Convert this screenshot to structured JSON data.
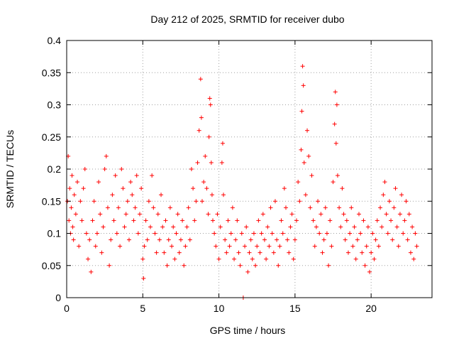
{
  "chart_data": {
    "type": "scatter",
    "title": "Day 212 of 2025, SRMTID for receiver dubo",
    "xlabel": "GPS time / hours",
    "ylabel": "SRMTID / TECUs",
    "xlim": [
      0,
      24
    ],
    "ylim": [
      0,
      0.4
    ],
    "xticks": [
      0,
      5,
      10,
      15,
      20
    ],
    "xtick_labels": [
      "0",
      "5",
      "10",
      "15",
      "20"
    ],
    "yticks": [
      0,
      0.05,
      0.1,
      0.15,
      0.2,
      0.25,
      0.3,
      0.35,
      0.4
    ],
    "ytick_labels": [
      "0",
      "0.05",
      "0.1",
      "0.15",
      "0.2",
      "0.25",
      "0.3",
      "0.35",
      "0.4"
    ],
    "grid": true,
    "marker": "+",
    "color": "#ff0000",
    "series": [
      {
        "name": "SRMTID",
        "points": [
          [
            0.05,
            0.15
          ],
          [
            0.1,
            0.22
          ],
          [
            0.15,
            0.12
          ],
          [
            0.2,
            0.17
          ],
          [
            0.25,
            0.1
          ],
          [
            0.3,
            0.14
          ],
          [
            0.35,
            0.19
          ],
          [
            0.4,
            0.11
          ],
          [
            0.45,
            0.09
          ],
          [
            0.5,
            0.16
          ],
          [
            0.6,
            0.13
          ],
          [
            0.7,
            0.18
          ],
          [
            0.8,
            0.08
          ],
          [
            0.9,
            0.15
          ],
          [
            1.0,
            0.12
          ],
          [
            1.1,
            0.17
          ],
          [
            1.2,
            0.2
          ],
          [
            1.3,
            0.1
          ],
          [
            1.4,
            0.06
          ],
          [
            1.5,
            0.09
          ],
          [
            1.6,
            0.04
          ],
          [
            1.7,
            0.12
          ],
          [
            1.8,
            0.15
          ],
          [
            1.9,
            0.08
          ],
          [
            2.0,
            0.1
          ],
          [
            2.1,
            0.18
          ],
          [
            2.2,
            0.13
          ],
          [
            2.3,
            0.07
          ],
          [
            2.4,
            0.11
          ],
          [
            2.5,
            0.2
          ],
          [
            2.6,
            0.22
          ],
          [
            2.7,
            0.14
          ],
          [
            2.8,
            0.05
          ],
          [
            2.9,
            0.09
          ],
          [
            3.0,
            0.16
          ],
          [
            3.1,
            0.12
          ],
          [
            3.2,
            0.19
          ],
          [
            3.3,
            0.1
          ],
          [
            3.4,
            0.14
          ],
          [
            3.5,
            0.08
          ],
          [
            3.6,
            0.2
          ],
          [
            3.7,
            0.17
          ],
          [
            3.8,
            0.11
          ],
          [
            3.9,
            0.13
          ],
          [
            4.0,
            0.15
          ],
          [
            4.1,
            0.09
          ],
          [
            4.2,
            0.18
          ],
          [
            4.3,
            0.16
          ],
          [
            4.4,
            0.12
          ],
          [
            4.5,
            0.14
          ],
          [
            4.6,
            0.19
          ],
          [
            4.7,
            0.1
          ],
          [
            4.8,
            0.13
          ],
          [
            4.9,
            0.17
          ],
          [
            5.0,
            0.06
          ],
          [
            5.05,
            0.03
          ],
          [
            5.1,
            0.08
          ],
          [
            5.2,
            0.12
          ],
          [
            5.3,
            0.09
          ],
          [
            5.4,
            0.15
          ],
          [
            5.5,
            0.11
          ],
          [
            5.6,
            0.19
          ],
          [
            5.7,
            0.14
          ],
          [
            5.8,
            0.1
          ],
          [
            5.9,
            0.07
          ],
          [
            6.0,
            0.13
          ],
          [
            6.1,
            0.09
          ],
          [
            6.2,
            0.16
          ],
          [
            6.3,
            0.11
          ],
          [
            6.4,
            0.07
          ],
          [
            6.5,
            0.12
          ],
          [
            6.6,
            0.05
          ],
          [
            6.7,
            0.09
          ],
          [
            6.8,
            0.14
          ],
          [
            6.9,
            0.08
          ],
          [
            7.0,
            0.11
          ],
          [
            7.1,
            0.06
          ],
          [
            7.2,
            0.1
          ],
          [
            7.3,
            0.13
          ],
          [
            7.4,
            0.07
          ],
          [
            7.5,
            0.09
          ],
          [
            7.6,
            0.12
          ],
          [
            7.7,
            0.05
          ],
          [
            7.8,
            0.08
          ],
          [
            7.9,
            0.11
          ],
          [
            8.0,
            0.14
          ],
          [
            8.1,
            0.09
          ],
          [
            8.2,
            0.2
          ],
          [
            8.3,
            0.17
          ],
          [
            8.4,
            0.12
          ],
          [
            8.5,
            0.15
          ],
          [
            8.6,
            0.21
          ],
          [
            8.7,
            0.26
          ],
          [
            8.8,
            0.34
          ],
          [
            8.85,
            0.28
          ],
          [
            8.9,
            0.15
          ],
          [
            9.0,
            0.18
          ],
          [
            9.1,
            0.22
          ],
          [
            9.2,
            0.17
          ],
          [
            9.3,
            0.13
          ],
          [
            9.35,
            0.25
          ],
          [
            9.4,
            0.31
          ],
          [
            9.45,
            0.3
          ],
          [
            9.5,
            0.21
          ],
          [
            9.55,
            0.16
          ],
          [
            9.6,
            0.12
          ],
          [
            9.7,
            0.1
          ],
          [
            9.8,
            0.08
          ],
          [
            9.9,
            0.13
          ],
          [
            10.0,
            0.06
          ],
          [
            10.1,
            0.11
          ],
          [
            10.2,
            0.21
          ],
          [
            10.25,
            0.24
          ],
          [
            10.3,
            0.16
          ],
          [
            10.4,
            0.09
          ],
          [
            10.5,
            0.07
          ],
          [
            10.6,
            0.12
          ],
          [
            10.7,
            0.08
          ],
          [
            10.8,
            0.1
          ],
          [
            10.9,
            0.14
          ],
          [
            11.0,
            0.06
          ],
          [
            11.1,
            0.09
          ],
          [
            11.2,
            0.12
          ],
          [
            11.3,
            0.07
          ],
          [
            11.4,
            0.05
          ],
          [
            11.5,
            0.1
          ],
          [
            11.6,
            0.0
          ],
          [
            11.7,
            0.08
          ],
          [
            11.8,
            0.11
          ],
          [
            11.9,
            0.04
          ],
          [
            12.0,
            0.07
          ],
          [
            12.1,
            0.09
          ],
          [
            12.2,
            0.06
          ],
          [
            12.3,
            0.1
          ],
          [
            12.4,
            0.05
          ],
          [
            12.5,
            0.08
          ],
          [
            12.6,
            0.12
          ],
          [
            12.7,
            0.07
          ],
          [
            12.8,
            0.1
          ],
          [
            12.9,
            0.13
          ],
          [
            13.0,
            0.09
          ],
          [
            13.1,
            0.06
          ],
          [
            13.2,
            0.11
          ],
          [
            13.3,
            0.08
          ],
          [
            13.4,
            0.14
          ],
          [
            13.5,
            0.1
          ],
          [
            13.6,
            0.07
          ],
          [
            13.7,
            0.15
          ],
          [
            13.8,
            0.09
          ],
          [
            13.9,
            0.05
          ],
          [
            14.0,
            0.08
          ],
          [
            14.1,
            0.12
          ],
          [
            14.2,
            0.1
          ],
          [
            14.3,
            0.17
          ],
          [
            14.4,
            0.14
          ],
          [
            14.5,
            0.09
          ],
          [
            14.6,
            0.07
          ],
          [
            14.7,
            0.11
          ],
          [
            14.8,
            0.13
          ],
          [
            14.9,
            0.06
          ],
          [
            15.0,
            0.09
          ],
          [
            15.1,
            0.12
          ],
          [
            15.2,
            0.18
          ],
          [
            15.3,
            0.15
          ],
          [
            15.4,
            0.23
          ],
          [
            15.45,
            0.29
          ],
          [
            15.5,
            0.36
          ],
          [
            15.55,
            0.33
          ],
          [
            15.6,
            0.21
          ],
          [
            15.7,
            0.16
          ],
          [
            15.8,
            0.26
          ],
          [
            15.9,
            0.22
          ],
          [
            16.0,
            0.14
          ],
          [
            16.1,
            0.19
          ],
          [
            16.2,
            0.12
          ],
          [
            16.3,
            0.08
          ],
          [
            16.4,
            0.11
          ],
          [
            16.5,
            0.15
          ],
          [
            16.6,
            0.1
          ],
          [
            16.7,
            0.13
          ],
          [
            16.8,
            0.07
          ],
          [
            16.9,
            0.09
          ],
          [
            17.0,
            0.14
          ],
          [
            17.1,
            0.1
          ],
          [
            17.2,
            0.05
          ],
          [
            17.3,
            0.12
          ],
          [
            17.4,
            0.08
          ],
          [
            17.5,
            0.18
          ],
          [
            17.6,
            0.27
          ],
          [
            17.65,
            0.32
          ],
          [
            17.7,
            0.24
          ],
          [
            17.75,
            0.3
          ],
          [
            17.8,
            0.19
          ],
          [
            17.9,
            0.14
          ],
          [
            18.0,
            0.11
          ],
          [
            18.1,
            0.17
          ],
          [
            18.2,
            0.13
          ],
          [
            18.3,
            0.09
          ],
          [
            18.4,
            0.12
          ],
          [
            18.5,
            0.07
          ],
          [
            18.6,
            0.1
          ],
          [
            18.7,
            0.14
          ],
          [
            18.8,
            0.08
          ],
          [
            18.9,
            0.11
          ],
          [
            19.0,
            0.06
          ],
          [
            19.1,
            0.09
          ],
          [
            19.2,
            0.13
          ],
          [
            19.3,
            0.1
          ],
          [
            19.4,
            0.07
          ],
          [
            19.5,
            0.12
          ],
          [
            19.6,
            0.05
          ],
          [
            19.7,
            0.08
          ],
          [
            19.8,
            0.11
          ],
          [
            19.9,
            0.04
          ],
          [
            20.0,
            0.07
          ],
          [
            20.1,
            0.1
          ],
          [
            20.2,
            0.06
          ],
          [
            20.3,
            0.09
          ],
          [
            20.4,
            0.12
          ],
          [
            20.5,
            0.08
          ],
          [
            20.6,
            0.14
          ],
          [
            20.7,
            0.11
          ],
          [
            20.8,
            0.16
          ],
          [
            20.9,
            0.18
          ],
          [
            21.0,
            0.13
          ],
          [
            21.1,
            0.1
          ],
          [
            21.2,
            0.15
          ],
          [
            21.3,
            0.12
          ],
          [
            21.4,
            0.09
          ],
          [
            21.5,
            0.14
          ],
          [
            21.6,
            0.17
          ],
          [
            21.7,
            0.11
          ],
          [
            21.8,
            0.08
          ],
          [
            21.9,
            0.13
          ],
          [
            22.0,
            0.16
          ],
          [
            22.1,
            0.1
          ],
          [
            22.2,
            0.12
          ],
          [
            22.3,
            0.15
          ],
          [
            22.4,
            0.09
          ],
          [
            22.5,
            0.13
          ],
          [
            22.6,
            0.07
          ],
          [
            22.7,
            0.11
          ],
          [
            22.8,
            0.06
          ],
          [
            22.9,
            0.1
          ],
          [
            23.0,
            0.08
          ]
        ]
      }
    ]
  }
}
